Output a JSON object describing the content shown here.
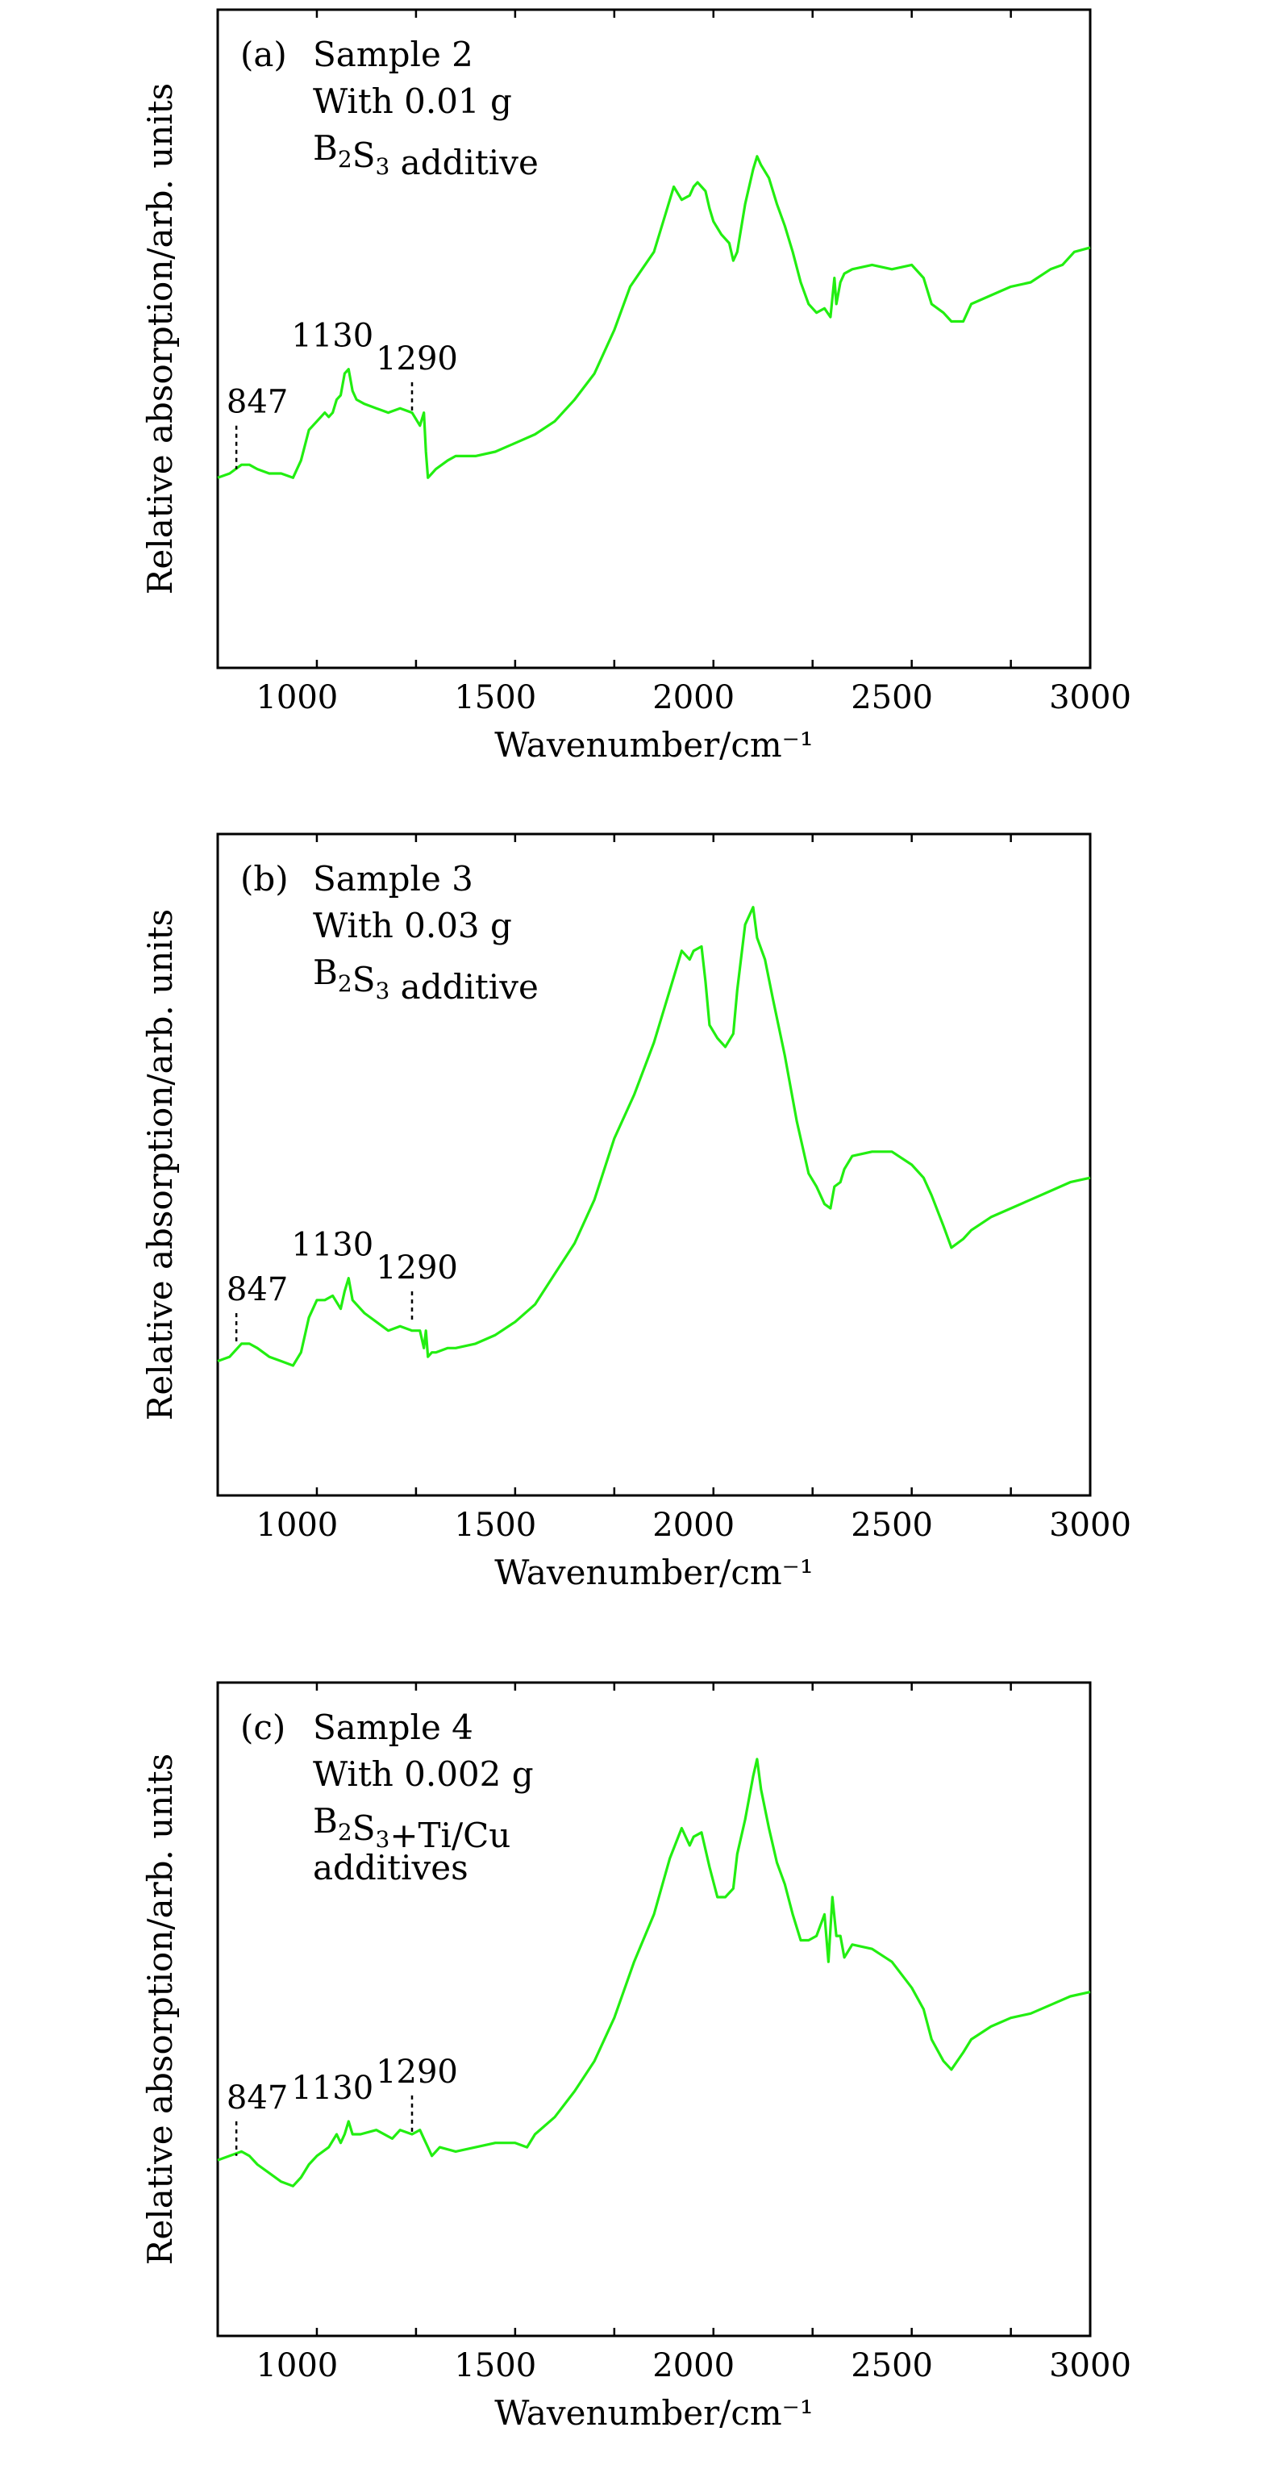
{
  "chart_data": [
    {
      "type": "line",
      "panel_label": "(a)",
      "annotation_lines": [
        "Sample 2",
        "With 0.01 g",
        "B2S3 additive"
      ],
      "xlabel": "Wavenumber/cm⁻¹",
      "ylabel": "Relative absorption/arb. units",
      "xlim": [
        800,
        3000
      ],
      "ylim": [
        0,
        1
      ],
      "x_ticks": [
        1000,
        1500,
        2000,
        2500,
        3000
      ],
      "x_tick_labels": [
        "1000",
        "1500",
        "2000",
        "2500",
        "3000"
      ],
      "y_ticks_shown": false,
      "line_color": "#22ee11",
      "peaks": [
        {
          "x": 847,
          "label": "847",
          "y_top": 0.3,
          "y_bottom": 0.2
        },
        {
          "x": 1130,
          "label": "1130"
        },
        {
          "x": 1290,
          "label": "1290",
          "y_top": 0.4,
          "y_bottom": 0.33
        }
      ],
      "series": [
        {
          "x": [
            800,
            830,
            860,
            880,
            900,
            930,
            960,
            990,
            1010,
            1030,
            1050,
            1070,
            1080,
            1090,
            1100,
            1110,
            1120,
            1130,
            1140,
            1150,
            1170,
            1200,
            1230,
            1260,
            1290,
            1310,
            1320,
            1325,
            1330,
            1340,
            1350,
            1380,
            1400,
            1450,
            1500,
            1550,
            1600,
            1650,
            1700,
            1750,
            1800,
            1840,
            1870,
            1900,
            1930,
            1950,
            1970,
            1990,
            2000,
            2010,
            2020,
            2030,
            2040,
            2050,
            2070,
            2090,
            2100,
            2110,
            2130,
            2150,
            2160,
            2170,
            2190,
            2210,
            2230,
            2250,
            2270,
            2290,
            2310,
            2330,
            2345,
            2355,
            2360,
            2370,
            2380,
            2400,
            2450,
            2500,
            2550,
            2580,
            2600,
            2630,
            2650,
            2680,
            2700,
            2750,
            2800,
            2850,
            2900,
            2930,
            2960,
            3000
          ],
          "y": [
            0.18,
            0.19,
            0.21,
            0.21,
            0.2,
            0.19,
            0.19,
            0.18,
            0.22,
            0.29,
            0.31,
            0.33,
            0.32,
            0.33,
            0.36,
            0.37,
            0.42,
            0.43,
            0.38,
            0.36,
            0.35,
            0.34,
            0.33,
            0.34,
            0.33,
            0.3,
            0.33,
            0.24,
            0.18,
            0.19,
            0.2,
            0.22,
            0.23,
            0.23,
            0.24,
            0.26,
            0.28,
            0.31,
            0.36,
            0.42,
            0.52,
            0.62,
            0.66,
            0.7,
            0.79,
            0.85,
            0.82,
            0.83,
            0.85,
            0.86,
            0.85,
            0.84,
            0.8,
            0.77,
            0.74,
            0.72,
            0.68,
            0.7,
            0.81,
            0.89,
            0.92,
            0.9,
            0.87,
            0.81,
            0.76,
            0.7,
            0.63,
            0.58,
            0.56,
            0.57,
            0.55,
            0.64,
            0.58,
            0.63,
            0.65,
            0.66,
            0.67,
            0.66,
            0.67,
            0.64,
            0.58,
            0.56,
            0.54,
            0.54,
            0.58,
            0.6,
            0.62,
            0.63,
            0.66,
            0.67,
            0.7,
            0.71
          ]
        }
      ]
    },
    {
      "type": "line",
      "panel_label": "(b)",
      "annotation_lines": [
        "Sample 3",
        "With 0.03 g",
        "B2S3 additive"
      ],
      "xlabel": "Wavenumber/cm⁻¹",
      "ylabel": "Relative absorption/arb. units",
      "xlim": [
        800,
        3000
      ],
      "ylim": [
        0,
        1
      ],
      "x_ticks": [
        1000,
        1500,
        2000,
        2500,
        3000
      ],
      "x_tick_labels": [
        "1000",
        "1500",
        "2000",
        "2500",
        "3000"
      ],
      "y_ticks_shown": false,
      "line_color": "#22ee11",
      "peaks": [
        {
          "x": 847,
          "label": "847",
          "y_top": 0.16,
          "y_bottom": 0.09
        },
        {
          "x": 1130,
          "label": "1130"
        },
        {
          "x": 1290,
          "label": "1290",
          "y_top": 0.21,
          "y_bottom": 0.14
        }
      ],
      "series": [
        {
          "x": [
            800,
            830,
            860,
            880,
            900,
            930,
            960,
            990,
            1010,
            1030,
            1050,
            1070,
            1090,
            1110,
            1120,
            1130,
            1140,
            1150,
            1170,
            1200,
            1230,
            1260,
            1290,
            1310,
            1320,
            1325,
            1330,
            1340,
            1350,
            1380,
            1400,
            1450,
            1500,
            1550,
            1600,
            1650,
            1700,
            1750,
            1800,
            1850,
            1900,
            1940,
            1970,
            1990,
            2000,
            2020,
            2030,
            2040,
            2060,
            2080,
            2100,
            2110,
            2130,
            2150,
            2160,
            2180,
            2200,
            2230,
            2260,
            2290,
            2310,
            2330,
            2345,
            2355,
            2370,
            2380,
            2400,
            2450,
            2500,
            2550,
            2580,
            2600,
            2630,
            2650,
            2680,
            2700,
            2750,
            2800,
            2850,
            2900,
            2950,
            3000
          ],
          "y": [
            0.05,
            0.06,
            0.09,
            0.09,
            0.08,
            0.06,
            0.05,
            0.04,
            0.07,
            0.15,
            0.19,
            0.19,
            0.2,
            0.17,
            0.21,
            0.24,
            0.19,
            0.18,
            0.16,
            0.14,
            0.12,
            0.13,
            0.12,
            0.12,
            0.08,
            0.12,
            0.06,
            0.07,
            0.07,
            0.08,
            0.08,
            0.09,
            0.11,
            0.14,
            0.18,
            0.25,
            0.32,
            0.42,
            0.56,
            0.66,
            0.78,
            0.9,
            0.99,
            0.97,
            0.99,
            1.0,
            0.92,
            0.82,
            0.79,
            0.77,
            0.8,
            0.9,
            1.05,
            1.09,
            1.02,
            0.97,
            0.88,
            0.75,
            0.6,
            0.48,
            0.45,
            0.41,
            0.4,
            0.45,
            0.46,
            0.49,
            0.52,
            0.53,
            0.53,
            0.5,
            0.47,
            0.43,
            0.36,
            0.31,
            0.33,
            0.35,
            0.38,
            0.4,
            0.42,
            0.44,
            0.46,
            0.47
          ]
        }
      ]
    },
    {
      "type": "line",
      "panel_label": "(c)",
      "annotation_lines": [
        "Sample 4",
        "With 0.002 g",
        "B2S3+Ti/Cu",
        "additives"
      ],
      "xlabel": "Wavenumber/cm⁻¹",
      "ylabel": "Relative absorption/arb. units",
      "xlim": [
        800,
        3000
      ],
      "ylim": [
        0,
        1
      ],
      "x_ticks": [
        1000,
        1500,
        2000,
        2500,
        3000
      ],
      "x_tick_labels": [
        "1000",
        "1500",
        "2000",
        "2500",
        "3000"
      ],
      "y_ticks_shown": false,
      "line_color": "#22ee11",
      "peaks": [
        {
          "x": 847,
          "label": "847",
          "y_top": 0.24,
          "y_bottom": 0.16
        },
        {
          "x": 1130,
          "label": "1130"
        },
        {
          "x": 1290,
          "label": "1290",
          "y_top": 0.3,
          "y_bottom": 0.21
        }
      ],
      "series": [
        {
          "x": [
            800,
            830,
            860,
            880,
            900,
            930,
            960,
            990,
            1010,
            1030,
            1050,
            1080,
            1100,
            1110,
            1120,
            1130,
            1140,
            1160,
            1200,
            1240,
            1260,
            1290,
            1310,
            1320,
            1330,
            1340,
            1360,
            1400,
            1450,
            1500,
            1550,
            1580,
            1600,
            1650,
            1700,
            1750,
            1800,
            1850,
            1900,
            1940,
            1970,
            1990,
            2000,
            2020,
            2040,
            2060,
            2080,
            2100,
            2110,
            2130,
            2150,
            2160,
            2170,
            2190,
            2210,
            2230,
            2250,
            2270,
            2290,
            2310,
            2330,
            2340,
            2350,
            2360,
            2370,
            2380,
            2400,
            2450,
            2500,
            2550,
            2580,
            2600,
            2630,
            2650,
            2680,
            2700,
            2750,
            2800,
            2850,
            2900,
            2950,
            3000
          ],
          "y": [
            0.15,
            0.16,
            0.17,
            0.16,
            0.14,
            0.12,
            0.1,
            0.09,
            0.11,
            0.14,
            0.16,
            0.18,
            0.21,
            0.19,
            0.21,
            0.24,
            0.21,
            0.21,
            0.22,
            0.2,
            0.22,
            0.21,
            0.22,
            0.2,
            0.18,
            0.16,
            0.18,
            0.17,
            0.18,
            0.19,
            0.19,
            0.18,
            0.21,
            0.25,
            0.31,
            0.38,
            0.48,
            0.61,
            0.72,
            0.85,
            0.92,
            0.88,
            0.9,
            0.91,
            0.83,
            0.76,
            0.76,
            0.78,
            0.86,
            0.94,
            1.04,
            1.08,
            1.01,
            0.92,
            0.84,
            0.79,
            0.72,
            0.66,
            0.66,
            0.67,
            0.72,
            0.61,
            0.76,
            0.67,
            0.67,
            0.62,
            0.65,
            0.64,
            0.61,
            0.55,
            0.5,
            0.43,
            0.38,
            0.36,
            0.4,
            0.43,
            0.46,
            0.48,
            0.49,
            0.51,
            0.53,
            0.54
          ]
        }
      ]
    }
  ]
}
